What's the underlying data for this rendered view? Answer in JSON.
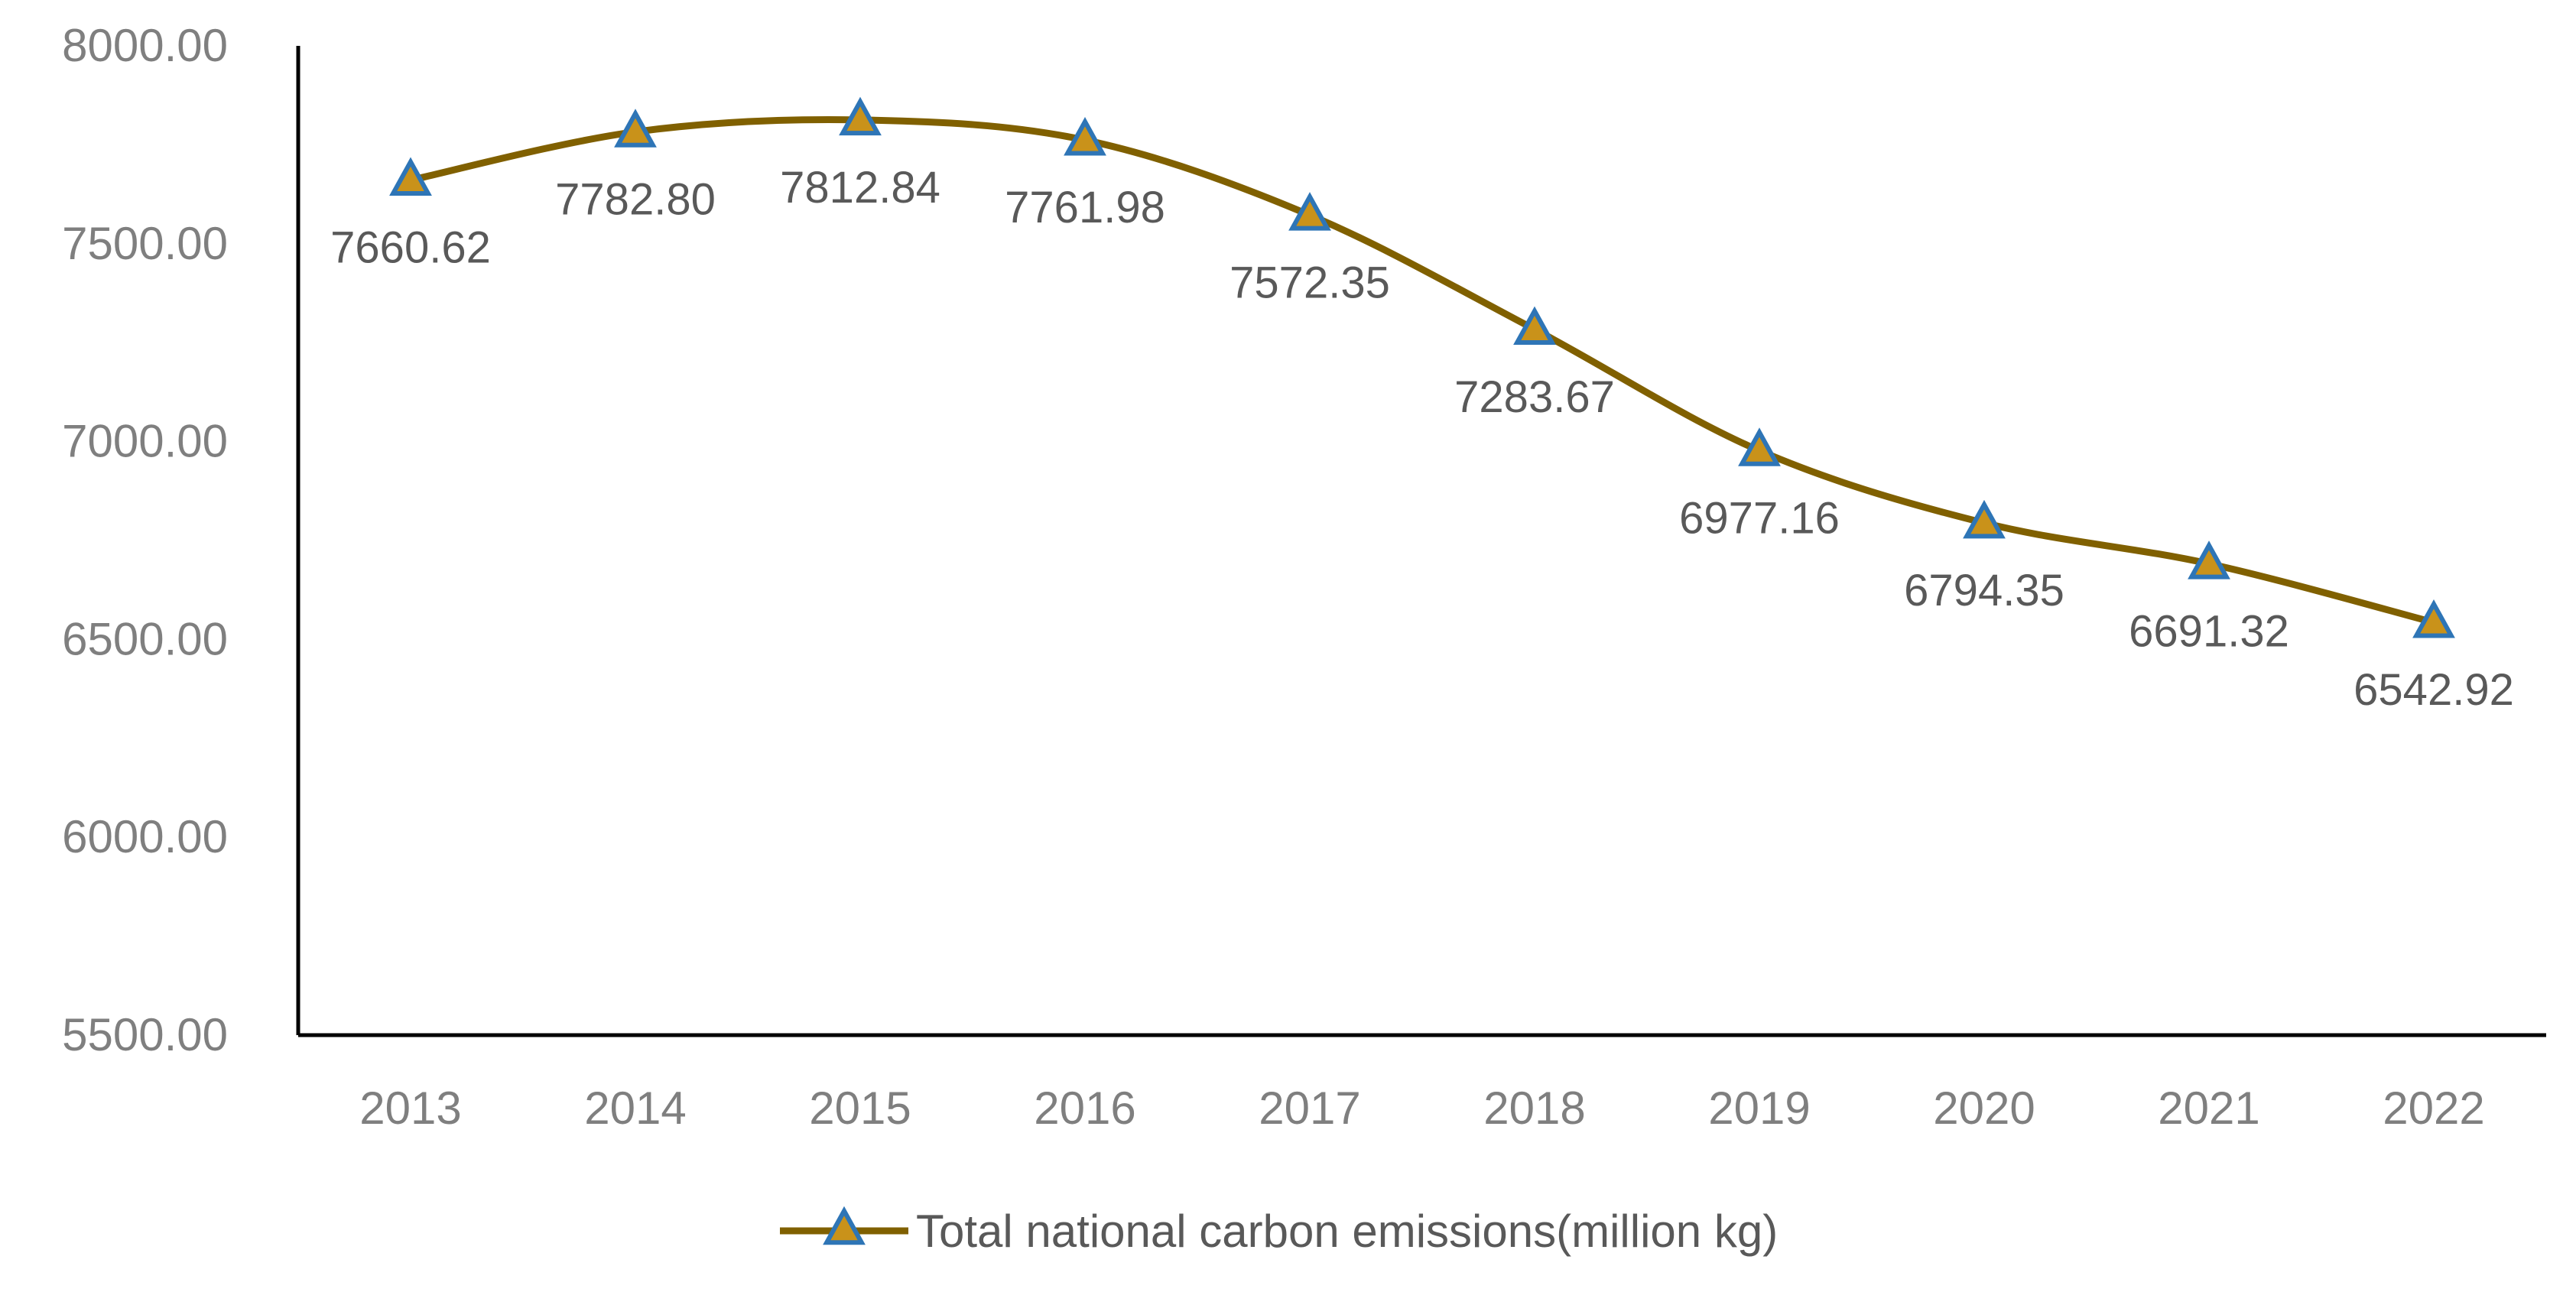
{
  "chart_data": {
    "type": "line",
    "title": "",
    "xlabel": "",
    "ylabel": "",
    "categories": [
      "2013",
      "2014",
      "2015",
      "2016",
      "2017",
      "2018",
      "2019",
      "2020",
      "2021",
      "2022"
    ],
    "series": [
      {
        "name": "Total national carbon emissions(million kg)",
        "values": [
          7660.62,
          7782.8,
          7812.84,
          7761.98,
          7572.35,
          7283.67,
          6977.16,
          6794.35,
          6691.32,
          6542.92
        ],
        "labels": [
          "7660.62",
          "7782.80",
          "7812.84",
          "7761.98",
          "7572.35",
          "7283.67",
          "6977.16",
          "6794.35",
          "6691.32",
          "6542.92"
        ],
        "line_color": "#806000",
        "marker": "triangle",
        "marker_fill": "#C9921A",
        "marker_edge": "#2E75B6",
        "smooth": true
      }
    ],
    "ylim": [
      5500,
      8000
    ],
    "yticks": [
      5500,
      6000,
      6500,
      7000,
      7500,
      8000
    ],
    "ytick_labels": [
      "5500.00",
      "6000.00",
      "6500.00",
      "7000.00",
      "7500.00",
      "8000.00"
    ],
    "grid": false,
    "legend_position": "bottom"
  }
}
